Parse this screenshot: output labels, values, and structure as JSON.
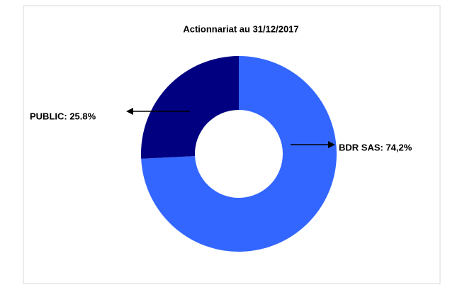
{
  "chart_data": {
    "type": "donut",
    "title": "Actionnariat au 31/12/2017",
    "values": [
      74.2,
      25.8
    ],
    "value_labels": [
      "BDR SAS: 74,2%",
      "PUBLIC: 25.8%"
    ],
    "colors": [
      "#3366ff",
      "#000080"
    ]
  }
}
